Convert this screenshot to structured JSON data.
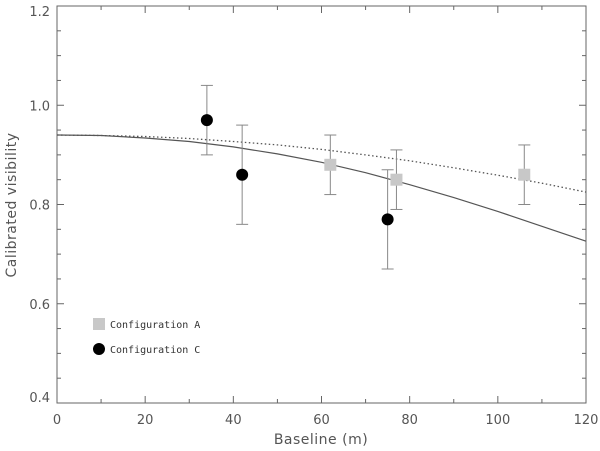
{
  "chart_data": {
    "type": "scatter",
    "xlabel": "Baseline (m)",
    "ylabel": "Calibrated visibility",
    "xlim": [
      0,
      120
    ],
    "ylim": [
      0.4,
      1.2
    ],
    "xticks": [
      0,
      20,
      40,
      60,
      80,
      100,
      120
    ],
    "yticks": [
      0.4,
      0.6,
      0.8,
      1.0,
      1.2
    ],
    "xtick_labels": [
      "0",
      "20",
      "40",
      "60",
      "80",
      "100",
      "120"
    ],
    "ytick_labels": [
      "0.4",
      "0.6",
      "0.8",
      "1.0",
      "1.2"
    ],
    "grid": false,
    "legend_position": "lower-left",
    "series": [
      {
        "name": "Configuration A",
        "marker": "square",
        "color": "#c8c8c8",
        "points": [
          {
            "x": 62,
            "y": 0.88,
            "err_low": 0.82,
            "err_high": 0.94
          },
          {
            "x": 77,
            "y": 0.85,
            "err_low": 0.79,
            "err_high": 0.91
          },
          {
            "x": 106,
            "y": 0.86,
            "err_low": 0.8,
            "err_high": 0.92
          }
        ]
      },
      {
        "name": "Configuration C",
        "marker": "circle",
        "color": "#000000",
        "points": [
          {
            "x": 34,
            "y": 0.97,
            "err_low": 0.9,
            "err_high": 1.04
          },
          {
            "x": 42,
            "y": 0.86,
            "err_low": 0.76,
            "err_high": 0.96
          },
          {
            "x": 75,
            "y": 0.77,
            "err_low": 0.67,
            "err_high": 0.87
          }
        ]
      }
    ],
    "curves": [
      {
        "style": "solid",
        "color": "#555555",
        "points": [
          {
            "x": 0,
            "y": 0.94
          },
          {
            "x": 10,
            "y": 0.939
          },
          {
            "x": 20,
            "y": 0.934
          },
          {
            "x": 30,
            "y": 0.927
          },
          {
            "x": 40,
            "y": 0.916
          },
          {
            "x": 50,
            "y": 0.902
          },
          {
            "x": 60,
            "y": 0.885
          },
          {
            "x": 70,
            "y": 0.864
          },
          {
            "x": 80,
            "y": 0.84
          },
          {
            "x": 90,
            "y": 0.814
          },
          {
            "x": 100,
            "y": 0.786
          },
          {
            "x": 110,
            "y": 0.756
          },
          {
            "x": 120,
            "y": 0.726
          }
        ]
      },
      {
        "style": "dotted",
        "color": "#555555",
        "points": [
          {
            "x": 0,
            "y": 0.94
          },
          {
            "x": 10,
            "y": 0.939
          },
          {
            "x": 20,
            "y": 0.937
          },
          {
            "x": 30,
            "y": 0.933
          },
          {
            "x": 40,
            "y": 0.927
          },
          {
            "x": 50,
            "y": 0.92
          },
          {
            "x": 60,
            "y": 0.911
          },
          {
            "x": 70,
            "y": 0.9
          },
          {
            "x": 80,
            "y": 0.888
          },
          {
            "x": 90,
            "y": 0.874
          },
          {
            "x": 100,
            "y": 0.859
          },
          {
            "x": 110,
            "y": 0.843
          },
          {
            "x": 120,
            "y": 0.825
          }
        ]
      }
    ]
  }
}
